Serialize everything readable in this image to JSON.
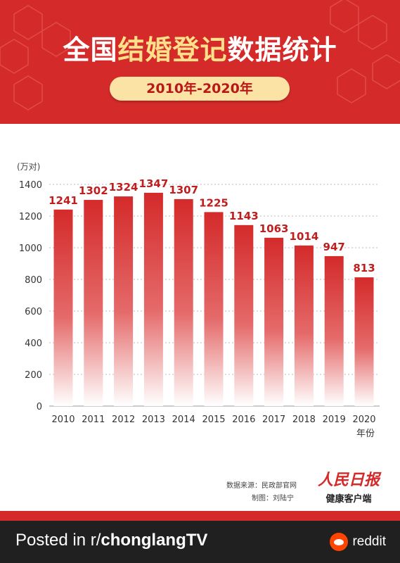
{
  "header": {
    "title_part1": "全国",
    "title_highlight": "结婚登记",
    "title_part2": "数据统计",
    "date_range": "2010年-2020年"
  },
  "chart_data": {
    "type": "bar",
    "categories": [
      "2010",
      "2011",
      "2012",
      "2013",
      "2014",
      "2015",
      "2016",
      "2017",
      "2018",
      "2019",
      "2020"
    ],
    "values": [
      1241,
      1302,
      1324,
      1347,
      1307,
      1225,
      1143,
      1063,
      1014,
      947,
      813
    ],
    "xlabel": "年份",
    "ylabel": "(万对)",
    "ylim": [
      0,
      1400
    ],
    "yticks": [
      0,
      200,
      400,
      600,
      800,
      1000,
      1200,
      1400
    ],
    "grid": true,
    "bar_color": "#d42a2a"
  },
  "source": {
    "line1": "数据来源：民政部官网",
    "line2": "制图：刘陆宁"
  },
  "brand": {
    "name": "人民日报",
    "sub": "健康客户端"
  },
  "footer": {
    "posted_prefix": "Posted in r/",
    "subreddit": "chonglangTV",
    "reddit_label": "reddit"
  }
}
